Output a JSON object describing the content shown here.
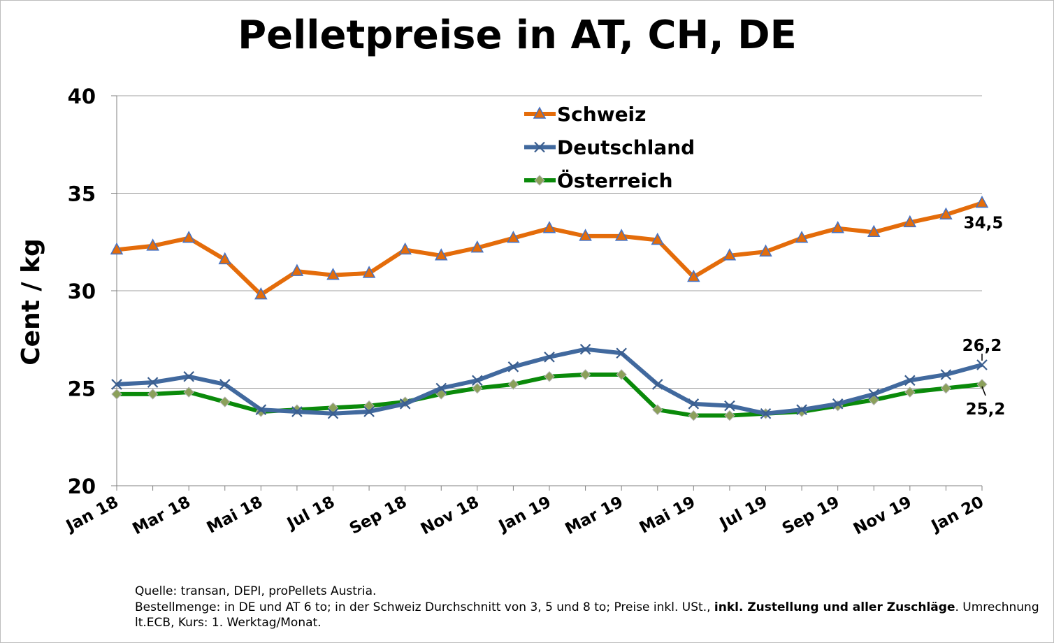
{
  "chart_data": {
    "type": "line",
    "title": "Pelletpreise in AT, CH, DE",
    "ylabel": "Cent / kg",
    "xlabel": "",
    "ylim": [
      20,
      40
    ],
    "yticks": [
      "20",
      "25",
      "30",
      "35",
      "40"
    ],
    "x_labels": [
      "Jan 18",
      "Mar 18",
      "Mai 18",
      "Jul 18",
      "Sep 18",
      "Nov 18",
      "Jan 19",
      "Mar 19",
      "Mai 19",
      "Jul 19",
      "Sep 19",
      "Nov 19",
      "Jan 20"
    ],
    "grid": "horizontal",
    "legend_position": "top-center",
    "series": [
      {
        "name": "Schweiz",
        "color": "#E46C0A",
        "marker": "triangle",
        "values": [
          32.1,
          32.3,
          32.7,
          31.6,
          29.8,
          31.0,
          30.8,
          30.9,
          32.1,
          31.8,
          32.2,
          32.7,
          33.2,
          32.8,
          32.8,
          32.6,
          30.7,
          31.8,
          32.0,
          32.7,
          33.2,
          33.0,
          33.5,
          33.9,
          34.5
        ],
        "end_label": "34,5"
      },
      {
        "name": "Deutschland",
        "color": "#41699E",
        "marker": "x",
        "values": [
          25.2,
          25.3,
          25.6,
          25.2,
          23.9,
          23.8,
          23.7,
          23.8,
          24.2,
          25.0,
          25.4,
          26.1,
          26.6,
          27.0,
          26.8,
          25.2,
          24.2,
          24.1,
          23.7,
          23.9,
          24.2,
          24.7,
          25.4,
          25.7,
          26.2
        ],
        "end_label": "26,2"
      },
      {
        "name": "Österreich",
        "color": "#0A8A0A",
        "marker": "diamond",
        "values": [
          24.7,
          24.7,
          24.8,
          24.3,
          23.8,
          23.9,
          24.0,
          24.1,
          24.3,
          24.7,
          25.0,
          25.2,
          25.6,
          25.7,
          25.7,
          23.9,
          23.6,
          23.6,
          23.7,
          23.8,
          24.1,
          24.4,
          24.8,
          25.0,
          25.2
        ],
        "end_label": "25,2"
      }
    ]
  },
  "footnote": {
    "line1": "Quelle: transan, DEPI, proPellets Austria.",
    "line2a": "Bestellmenge: in DE und AT 6 to; in der Schweiz Durchschnitt von 3, 5 und 8 to; Preise inkl. USt., ",
    "line2b": "inkl. Zustellung und aller Zuschläge",
    "line2c": ". Umrechnung lt.ECB, Kurs: 1. Werktag/Monat."
  }
}
